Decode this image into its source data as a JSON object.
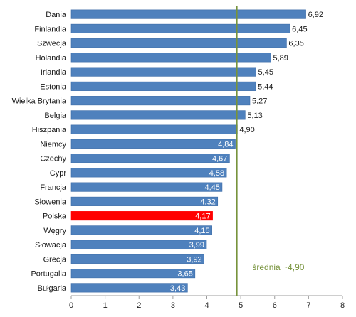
{
  "chart_data": {
    "type": "bar",
    "orientation": "horizontal",
    "categories": [
      "Dania",
      "Finlandia",
      "Szwecja",
      "Holandia",
      "Irlandia",
      "Estonia",
      "Wielka Brytania",
      "Belgia",
      "Hiszpania",
      "Niemcy",
      "Czechy",
      "Cypr",
      "Francja",
      "Słowenia",
      "Polska",
      "Węgry",
      "Słowacja",
      "Grecja",
      "Portugalia",
      "Bułgaria"
    ],
    "values": [
      6.92,
      6.45,
      6.35,
      5.89,
      5.45,
      5.44,
      5.27,
      5.13,
      4.9,
      4.84,
      4.67,
      4.58,
      4.45,
      4.32,
      4.17,
      4.15,
      3.99,
      3.92,
      3.65,
      3.43
    ],
    "value_labels": [
      "6,92",
      "6,45",
      "6,35",
      "5,89",
      "5,45",
      "5,44",
      "5,27",
      "5,13",
      "4,90",
      "4,84",
      "4,67",
      "4,58",
      "4,45",
      "4,32",
      "4,17",
      "4,15",
      "3,99",
      "3,92",
      "3,65",
      "3,43"
    ],
    "highlight": "Polska",
    "xlim": [
      0,
      8
    ],
    "x_ticks": [
      "0",
      "1",
      "2",
      "3",
      "4",
      "5",
      "6",
      "7",
      "8"
    ],
    "title": "",
    "xlabel": "",
    "ylabel": "",
    "grid": false,
    "reference_line": {
      "value": 4.9,
      "label": "średnia ~4,90"
    },
    "colors": {
      "bar": "#4f81bd",
      "bar_border": "#3a6aa6",
      "highlight": "#ff0000",
      "reference_line": "#77933c",
      "annotation": "#77933c",
      "label_inside": "#ffffff",
      "label_outside": "#1a1a1a",
      "axis": "#9c9c9c"
    }
  }
}
